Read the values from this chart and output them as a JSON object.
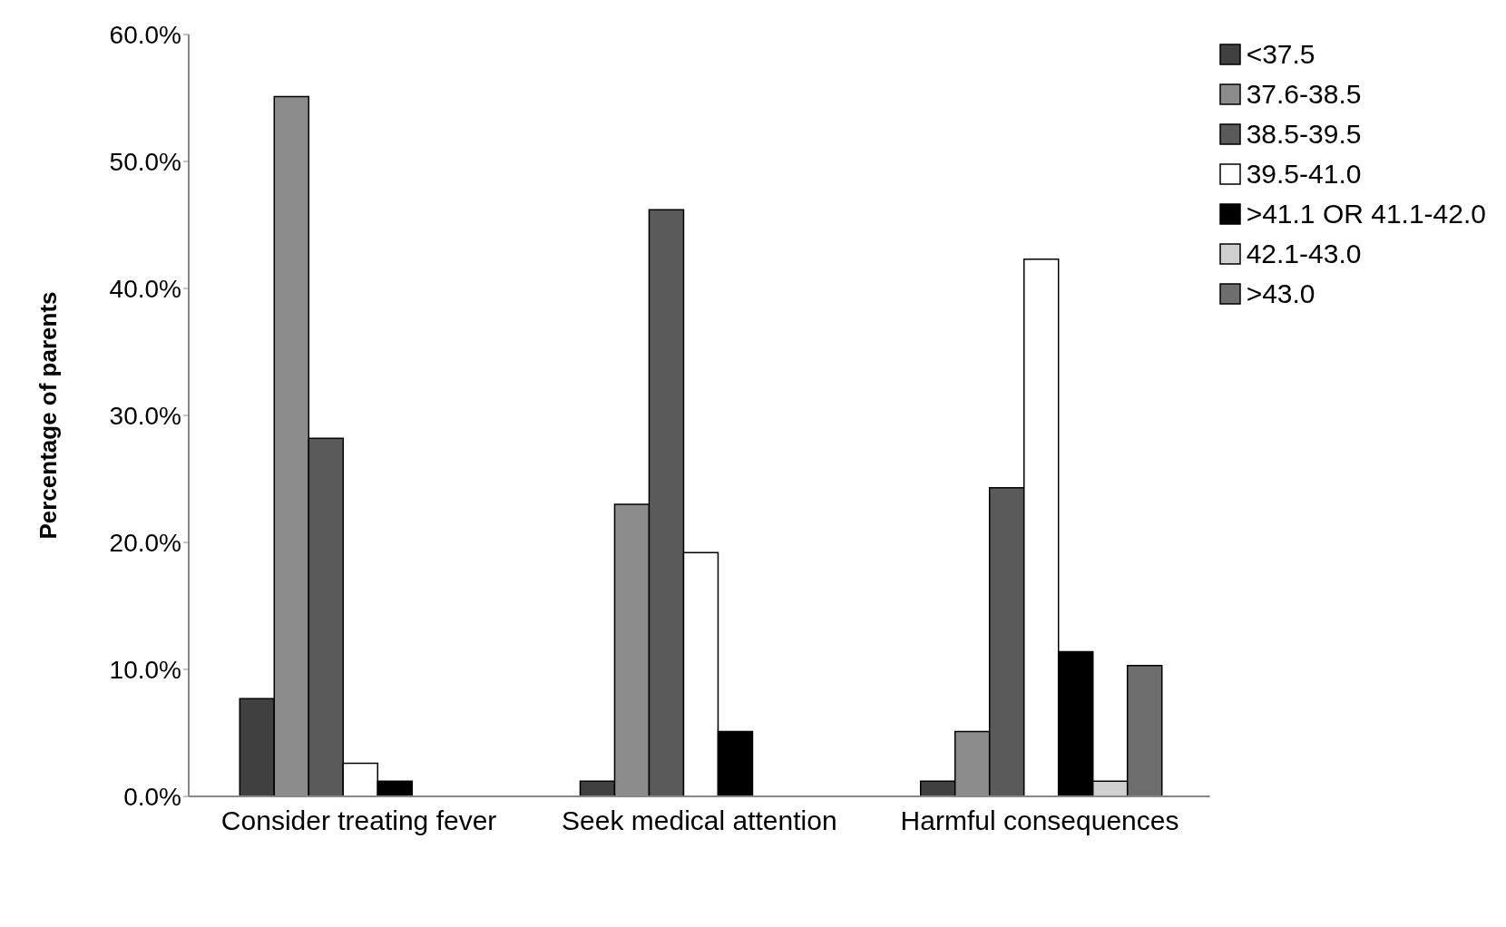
{
  "chart_data": {
    "type": "bar",
    "ylabel": "Percentage of parents",
    "categories": [
      "Consider treating fever",
      "Seek medical attention",
      "Harmful consequences"
    ],
    "series": [
      {
        "name": "<37.5",
        "color": "#404040",
        "values": [
          7.7,
          1.2,
          1.2
        ]
      },
      {
        "name": "37.6-38.5",
        "color": "#8c8c8c",
        "values": [
          55.1,
          23.0,
          5.1
        ]
      },
      {
        "name": "38.5-39.5",
        "color": "#5a5a5a",
        "values": [
          28.2,
          46.2,
          24.3
        ]
      },
      {
        "name": "39.5-41.0",
        "color": "#ffffff",
        "values": [
          2.6,
          19.2,
          42.3
        ]
      },
      {
        "name": ">41.1 OR 41.1-42.0",
        "color": "#000000",
        "values": [
          1.2,
          5.1,
          11.4
        ]
      },
      {
        "name": "42.1-43.0",
        "color": "#d0d0d0",
        "values": [
          null,
          null,
          1.2
        ]
      },
      {
        "name": ">43.0",
        "color": "#6e6e6e",
        "values": [
          null,
          null,
          10.3
        ]
      }
    ],
    "ylim": [
      0,
      60
    ],
    "yticks": [
      {
        "value": 0,
        "label": "0.0%"
      },
      {
        "value": 10,
        "label": "10.0%"
      },
      {
        "value": 20,
        "label": "20.0%"
      },
      {
        "value": 30,
        "label": "30.0%"
      },
      {
        "value": 40,
        "label": "40.0%"
      },
      {
        "value": 50,
        "label": "50.0%"
      },
      {
        "value": 60,
        "label": "60.0%"
      }
    ],
    "grid": false,
    "legend": "top right"
  }
}
